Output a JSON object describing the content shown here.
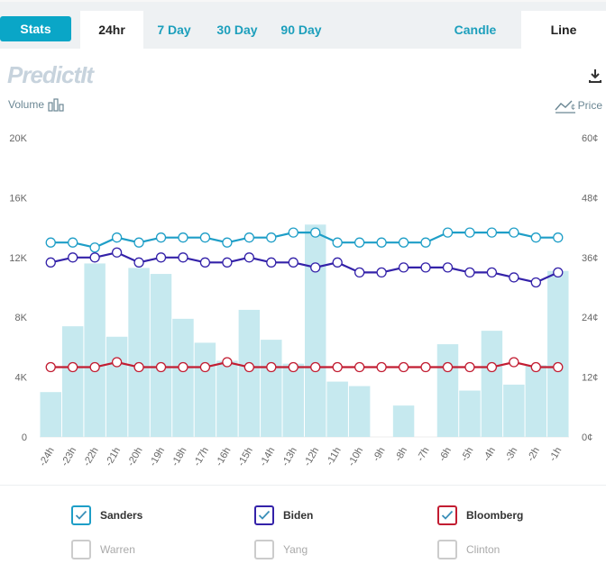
{
  "nav": {
    "stats_label": "Stats",
    "tabs": [
      {
        "label": "24hr",
        "active": true
      },
      {
        "label": "7 Day",
        "active": false
      },
      {
        "label": "30 Day",
        "active": false
      },
      {
        "label": "90 Day",
        "active": false
      }
    ],
    "view_tabs": [
      {
        "label": "Candle",
        "active": false
      },
      {
        "label": "Line",
        "active": true
      }
    ]
  },
  "logo_text": "PredictIt",
  "volume_label": "Volume",
  "price_label": "Price",
  "colors": {
    "accent": "#0aa6c7",
    "volume_bar": "#c6e9ef",
    "sanders": "#1e9ec7",
    "biden": "#3422a9",
    "bloomberg": "#c21d32"
  },
  "chart_data": {
    "type": "bar+line",
    "categories": [
      "-24h",
      "-23h",
      "-22h",
      "-21h",
      "-20h",
      "-19h",
      "-18h",
      "-17h",
      "-16h",
      "-15h",
      "-14h",
      "-13h",
      "-12h",
      "-11h",
      "-10h",
      "-9h",
      "-8h",
      "-7h",
      "-6h",
      "-5h",
      "-4h",
      "-3h",
      "-2h",
      "-1h"
    ],
    "volume": {
      "name": "Volume",
      "values": [
        3000,
        7400,
        11600,
        6700,
        11300,
        10900,
        7900,
        6300,
        5100,
        8500,
        6500,
        4900,
        14200,
        3700,
        3400,
        0,
        2100,
        0,
        6200,
        3100,
        7100,
        3500,
        4800,
        11100
      ],
      "ylim": [
        0,
        20000
      ],
      "yticks": [
        "0",
        "4K",
        "8K",
        "12K",
        "16K",
        "20K"
      ]
    },
    "price_axis": {
      "ylim": [
        0,
        60
      ],
      "yticks": [
        "0¢",
        "12¢",
        "24¢",
        "36¢",
        "48¢",
        "60¢"
      ]
    },
    "series": [
      {
        "name": "Sanders",
        "color": "#1e9ec7",
        "values": [
          39,
          39,
          38,
          40,
          39,
          40,
          40,
          40,
          39,
          40,
          40,
          41,
          41,
          39,
          39,
          39,
          39,
          39,
          41,
          41,
          41,
          41,
          40,
          40
        ]
      },
      {
        "name": "Biden",
        "color": "#3422a9",
        "values": [
          35,
          36,
          36,
          37,
          35,
          36,
          36,
          35,
          35,
          36,
          35,
          35,
          34,
          35,
          33,
          33,
          34,
          34,
          34,
          33,
          33,
          32,
          31,
          33
        ]
      },
      {
        "name": "Bloomberg",
        "color": "#c21d32",
        "values": [
          14,
          14,
          14,
          15,
          14,
          14,
          14,
          14,
          15,
          14,
          14,
          14,
          14,
          14,
          14,
          14,
          14,
          14,
          14,
          14,
          14,
          15,
          14,
          14
        ]
      }
    ]
  },
  "legend": [
    {
      "label": "Sanders",
      "checked": true,
      "color": "#1e9ec7"
    },
    {
      "label": "Biden",
      "checked": true,
      "color": "#3422a9"
    },
    {
      "label": "Bloomberg",
      "checked": true,
      "color": "#c21d32"
    },
    {
      "label": "Warren",
      "checked": false,
      "color": "#cccccc"
    },
    {
      "label": "Yang",
      "checked": false,
      "color": "#cccccc"
    },
    {
      "label": "Clinton",
      "checked": false,
      "color": "#cccccc"
    }
  ]
}
